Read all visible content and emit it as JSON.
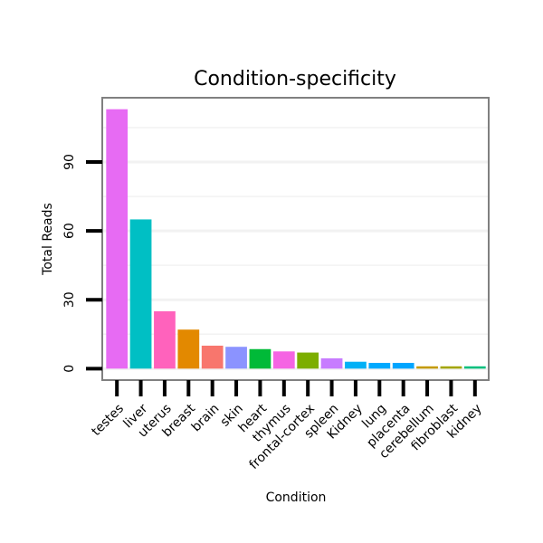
{
  "chart_data": {
    "type": "bar",
    "title": "Condition-specificity",
    "xlabel": "Condition",
    "ylabel": "Total Reads",
    "categories": [
      "testes",
      "liver",
      "uterus",
      "breast",
      "brain",
      "skin",
      "heart",
      "thymus",
      "frontal-cortex",
      "spleen",
      "Kidney",
      "lung",
      "placenta",
      "cerebellum",
      "fibroblast",
      "kidney"
    ],
    "values": [
      113,
      65,
      25,
      17,
      10,
      9.5,
      8.5,
      7.5,
      7,
      4.5,
      3,
      2.5,
      2.5,
      1,
      1,
      1
    ],
    "colors": [
      "#E76BF3",
      "#00BFC4",
      "#FF62BC",
      "#E38900",
      "#F8766D",
      "#8B93FF",
      "#00BA38",
      "#F564E3",
      "#7CAE00",
      "#C77CFF",
      "#00B0F6",
      "#00A9FF",
      "#00A5FF",
      "#C49A00",
      "#A3A500",
      "#00BF7D"
    ],
    "yticks": [
      0,
      30,
      60,
      90
    ],
    "ylim": [
      -5,
      118
    ],
    "grid": true
  }
}
